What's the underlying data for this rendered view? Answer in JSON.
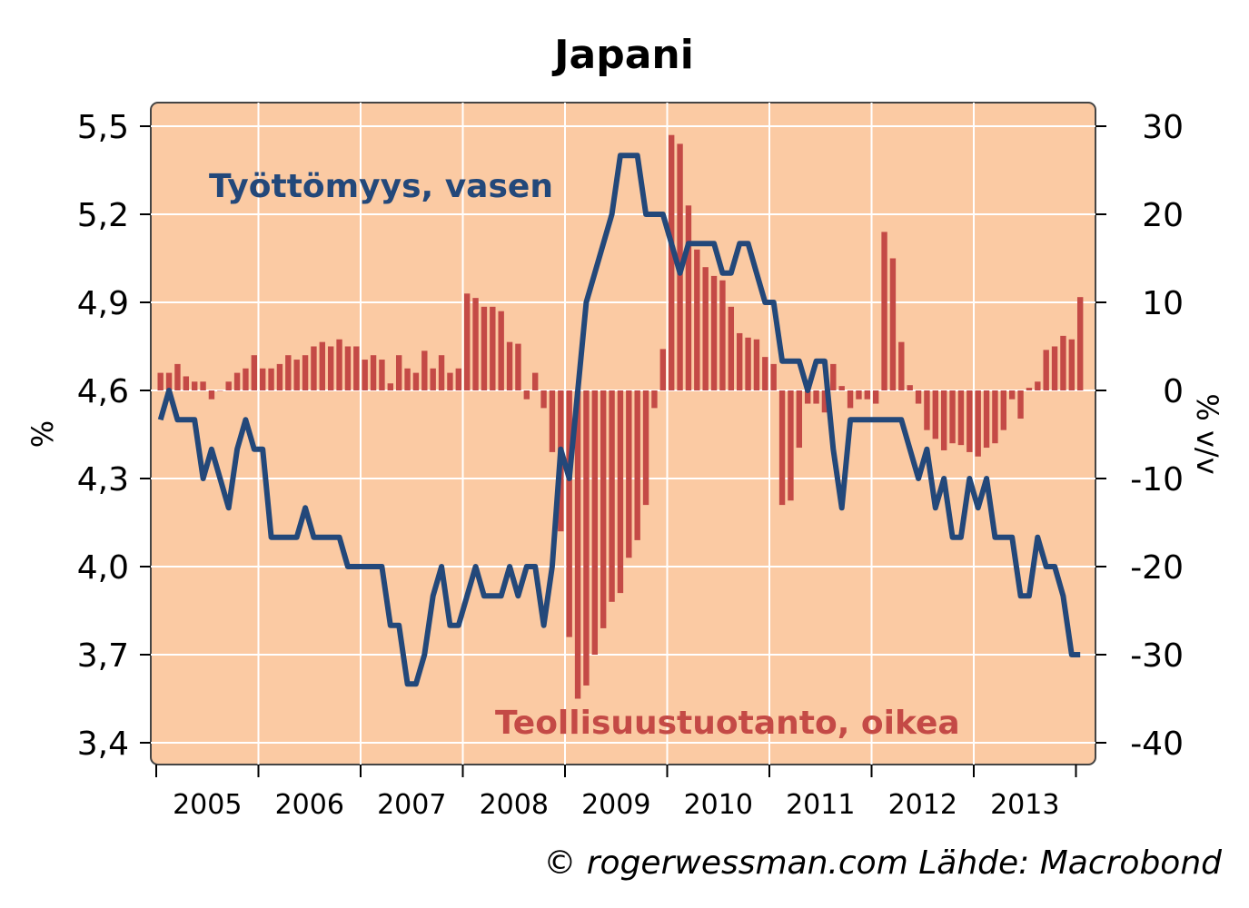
{
  "chart_data": {
    "type": "bar+line",
    "title": "Japani",
    "ylabel_left": "%",
    "ylabel_right": "% v/v",
    "ylim_left": [
      3.4,
      5.5
    ],
    "ylim_right": [
      -40,
      30
    ],
    "yticks_left": [
      "5,5",
      "5,2",
      "4,9",
      "4,6",
      "4,3",
      "4,0",
      "3,7",
      "3,4"
    ],
    "yticks_right": [
      "30",
      "20",
      "10",
      "0",
      "-10",
      "-20",
      "-30",
      "-40"
    ],
    "xticks": [
      "2005",
      "2006",
      "2007",
      "2008",
      "2009",
      "2010",
      "2011",
      "2012",
      "2013"
    ],
    "grid": true,
    "annotation_line": "Työttömyys, vasen",
    "annotation_bars": "Teollisuustuotanto, oikea",
    "credit": "© rogerwessman.com Lähde: Macrobond",
    "start": "2005-01",
    "series": [
      {
        "name": "Teollisuustuotanto, oikea",
        "axis": "right",
        "color": "#c44a46",
        "values": [
          2,
          2,
          3,
          1.6,
          1,
          1,
          -1,
          0,
          1,
          2,
          2.5,
          4,
          2.5,
          2.5,
          3,
          4,
          3.5,
          4,
          5,
          5.5,
          5,
          5.8,
          5,
          5,
          3.5,
          4,
          3.5,
          0.8,
          4,
          2.5,
          2,
          4.5,
          2.5,
          4,
          2,
          2.5,
          11,
          10.5,
          9.5,
          9.5,
          9,
          5.5,
          5.3,
          -1,
          2,
          -2,
          -7,
          -16,
          -28,
          -35,
          -33.5,
          -30,
          -27,
          -24,
          -23,
          -19,
          -17,
          -13,
          -2,
          4.7,
          29,
          28,
          21,
          16,
          14,
          13,
          12.5,
          9.5,
          6.5,
          6,
          5.8,
          3.8,
          3,
          -13,
          -12.5,
          -6.5,
          -1.5,
          -1.5,
          -2.5,
          3,
          0.5,
          -2,
          -1,
          -1,
          -1.5,
          18,
          15,
          5.5,
          0.6,
          -1.5,
          -4.5,
          -5.5,
          -6.8,
          -6,
          -6.2,
          -7,
          -7.5,
          -6.5,
          -6,
          -4.5,
          -1,
          -3.2,
          0.3,
          1,
          4.6,
          5,
          6.2,
          5.8,
          10.6
        ]
      },
      {
        "name": "Työttömyys, vasen",
        "axis": "left",
        "color": "#23487a",
        "values": [
          4.5,
          4.6,
          4.5,
          4.5,
          4.5,
          4.3,
          4.4,
          4.3,
          4.2,
          4.4,
          4.5,
          4.4,
          4.4,
          4.1,
          4.1,
          4.1,
          4.1,
          4.2,
          4.1,
          4.1,
          4.1,
          4.1,
          4.0,
          4.0,
          4.0,
          4.0,
          4.0,
          3.8,
          3.8,
          3.6,
          3.6,
          3.7,
          3.9,
          4.0,
          3.8,
          3.8,
          3.9,
          4.0,
          3.9,
          3.9,
          3.9,
          4.0,
          3.9,
          4.0,
          4.0,
          3.8,
          4.0,
          4.4,
          4.3,
          4.6,
          4.9,
          5.0,
          5.1,
          5.2,
          5.4,
          5.4,
          5.4,
          5.2,
          5.2,
          5.2,
          5.1,
          5.0,
          5.1,
          5.1,
          5.1,
          5.1,
          5.0,
          5.0,
          5.1,
          5.1,
          5.0,
          4.9,
          4.9,
          4.7,
          4.7,
          4.7,
          4.6,
          4.7,
          4.7,
          4.4,
          4.2,
          4.5,
          4.5,
          4.5,
          4.5,
          4.5,
          4.5,
          4.5,
          4.4,
          4.3,
          4.4,
          4.2,
          4.3,
          4.1,
          4.1,
          4.3,
          4.2,
          4.3,
          4.1,
          4.1,
          4.1,
          3.9,
          3.9,
          4.1,
          4.0,
          4.0,
          3.9,
          3.7,
          3.7
        ]
      }
    ]
  }
}
